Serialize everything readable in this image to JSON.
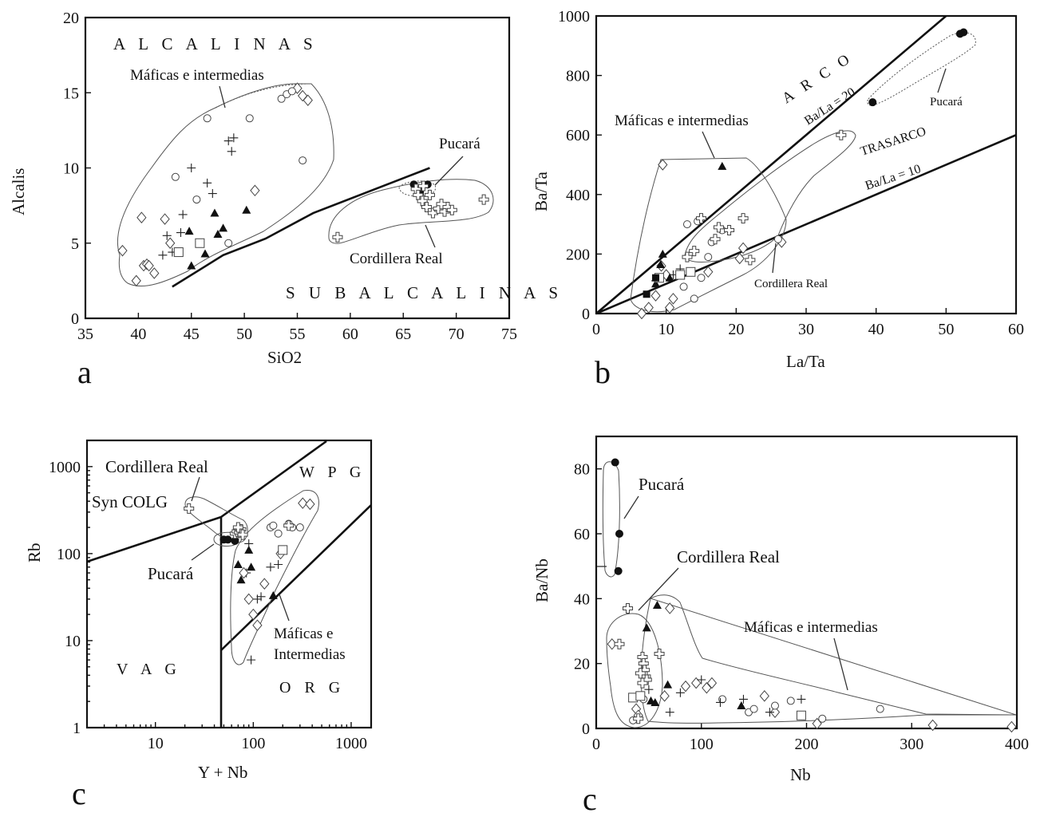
{
  "chart_data": [
    {
      "id": "a",
      "type": "scatter",
      "panel_label": "a",
      "xlabel": "SiO2",
      "ylabel": "Alcalis",
      "xlim": [
        35,
        75
      ],
      "ylim": [
        0,
        20
      ],
      "xticks": [
        "35",
        "40",
        "45",
        "50",
        "55",
        "60",
        "65",
        "70",
        "75"
      ],
      "yticks": [
        "0",
        "5",
        "10",
        "15",
        "20"
      ],
      "annotations": {
        "alcalinas": "A L C A L I N A S",
        "subalcalinas": "S U B A L C A L I N A S",
        "maficas": "Máficas e intermedias",
        "pucara": "Pucará",
        "cordillera": "Cordillera Real"
      },
      "divider_line": [
        [
          43.2,
          2.1
        ],
        [
          48,
          4.2
        ],
        [
          52,
          5.3
        ],
        [
          56.5,
          7.0
        ],
        [
          67.5,
          10.0
        ]
      ],
      "series": [
        {
          "marker": "diamond",
          "points": [
            [
              38.5,
              4.5
            ],
            [
              39.8,
              2.5
            ],
            [
              40.3,
              6.7
            ],
            [
              40.5,
              3.5
            ],
            [
              40.8,
              3.6
            ],
            [
              41,
              3.5
            ],
            [
              41.5,
              3.0
            ],
            [
              42.5,
              6.6
            ],
            [
              43,
              5.0
            ],
            [
              51,
              8.5
            ],
            [
              55.5,
              14.8
            ],
            [
              56,
              14.5
            ],
            [
              55,
              15.3
            ]
          ]
        },
        {
          "marker": "circle",
          "points": [
            [
              43.5,
              9.4
            ],
            [
              45.5,
              7.9
            ],
            [
              46.5,
              13.3
            ],
            [
              50.5,
              13.3
            ],
            [
              53.5,
              14.6
            ],
            [
              54,
              14.9
            ],
            [
              54.5,
              15.1
            ],
            [
              55.5,
              10.5
            ],
            [
              48.5,
              5.0
            ]
          ]
        },
        {
          "marker": "plus",
          "points": [
            [
              42.3,
              4.2
            ],
            [
              42.7,
              5.5
            ],
            [
              43.2,
              4.4
            ],
            [
              44,
              5.7
            ],
            [
              44.2,
              6.9
            ],
            [
              45,
              10
            ],
            [
              46.5,
              9
            ],
            [
              47,
              8.3
            ],
            [
              48.5,
              11.8
            ],
            [
              49,
              12
            ],
            [
              48.8,
              11.1
            ]
          ]
        },
        {
          "marker": "triangle",
          "points": [
            [
              44.8,
              5.8
            ],
            [
              45,
              3.5
            ],
            [
              46.3,
              4.3
            ],
            [
              47.2,
              7.0
            ],
            [
              47.5,
              5.6
            ],
            [
              48,
              6.0
            ],
            [
              50.2,
              7.2
            ]
          ]
        },
        {
          "marker": "square",
          "points": [
            [
              43.8,
              4.4
            ],
            [
              45.8,
              5.0
            ]
          ]
        },
        {
          "marker": "dot",
          "points": [
            [
              66,
              8.9
            ],
            [
              66.5,
              8.5
            ],
            [
              67.3,
              8.9
            ]
          ]
        },
        {
          "marker": "square-filled",
          "points": [
            [
              66.6,
              8.4
            ]
          ]
        },
        {
          "marker": "cross",
          "points": [
            [
              58.8,
              5.4
            ],
            [
              72.6,
              7.9
            ],
            [
              66.2,
              8.6
            ],
            [
              66.4,
              8.2
            ],
            [
              66.8,
              7.8
            ],
            [
              67.2,
              7.4
            ],
            [
              67.8,
              7.0
            ],
            [
              68.3,
              7.3
            ],
            [
              68.6,
              7.6
            ],
            [
              68.9,
              7.1
            ],
            [
              69.2,
              7.4
            ],
            [
              69.6,
              7.2
            ],
            [
              66.9,
              8.8
            ],
            [
              67.5,
              8.2
            ]
          ]
        }
      ]
    },
    {
      "id": "b",
      "type": "scatter",
      "panel_label": "b",
      "xlabel": "La/Ta",
      "ylabel": "Ba/Ta",
      "xlim": [
        0,
        60
      ],
      "ylim": [
        0,
        1000
      ],
      "xticks": [
        "0",
        "10",
        "20",
        "30",
        "40",
        "50",
        "60"
      ],
      "yticks": [
        "0",
        "200",
        "400",
        "600",
        "800",
        "1000"
      ],
      "annotations": {
        "arco": "A R C O",
        "trasarco": "TRASARCO",
        "ratio20": "Ba/La = 20",
        "ratio10": "Ba/La = 10",
        "maficas": "Máficas e intermedias",
        "pucara": "Pucará",
        "cordillera": "Cordillera Real"
      },
      "lines": [
        {
          "name": "Ba/La = 20",
          "slope": 20
        },
        {
          "name": "Ba/La = 10",
          "slope": 10
        }
      ],
      "series": [
        {
          "marker": "diamond",
          "points": [
            [
              6.5,
              0
            ],
            [
              7.5,
              20
            ],
            [
              8.5,
              60
            ],
            [
              9.5,
              500
            ],
            [
              10.5,
              20
            ],
            [
              11,
              50
            ],
            [
              16,
              140
            ],
            [
              20.5,
              185
            ],
            [
              21,
              220
            ],
            [
              9.3,
              160
            ],
            [
              10,
              130
            ],
            [
              26.5,
              240
            ]
          ]
        },
        {
          "marker": "circle",
          "points": [
            [
              12.5,
              90
            ],
            [
              13,
              300
            ],
            [
              14,
              50
            ],
            [
              15,
              120
            ],
            [
              16,
              190
            ],
            [
              14.5,
              310
            ],
            [
              16.5,
              240
            ],
            [
              18,
              280
            ],
            [
              26,
              250
            ]
          ]
        },
        {
          "marker": "plus",
          "points": [
            [
              8.5,
              110
            ],
            [
              11,
              130
            ],
            [
              12,
              150
            ]
          ]
        },
        {
          "marker": "triangle",
          "points": [
            [
              8.5,
              100
            ],
            [
              9.5,
              200
            ],
            [
              10.5,
              120
            ],
            [
              18,
              495
            ],
            [
              9.2,
              165
            ]
          ]
        },
        {
          "marker": "square",
          "points": [
            [
              9,
              120
            ],
            [
              12,
              130
            ],
            [
              13.5,
              140
            ]
          ]
        },
        {
          "marker": "square-filled",
          "points": [
            [
              7.2,
              65
            ],
            [
              8.5,
              120
            ]
          ]
        },
        {
          "marker": "dot",
          "points": [
            [
              39.5,
              710
            ],
            [
              52,
              940
            ],
            [
              52.5,
              945
            ]
          ]
        },
        {
          "marker": "cross",
          "points": [
            [
              13,
              190
            ],
            [
              14,
              210
            ],
            [
              15,
              320
            ],
            [
              17,
              250
            ],
            [
              17.5,
              290
            ],
            [
              19,
              280
            ],
            [
              21,
              320
            ],
            [
              22,
              180
            ],
            [
              35,
              600
            ]
          ]
        }
      ]
    },
    {
      "id": "c1",
      "type": "scatter",
      "panel_label": "c",
      "xlabel": "Y + Nb",
      "ylabel": "Rb",
      "xscale": "log",
      "yscale": "log",
      "xlim": [
        2,
        1600
      ],
      "ylim": [
        1,
        2000
      ],
      "xticks": [
        "10",
        "100",
        "1000"
      ],
      "yticks": [
        "1",
        "10",
        "100",
        "1000"
      ],
      "annotations": {
        "wpg": "W P G",
        "vag": "V A G",
        "org": "O R G",
        "syncolg": "Syn COLG",
        "cordillera": "Cordillera Real",
        "pucara": "Pucará",
        "maficas1": "Máficas e",
        "maficas2": "Intermedias"
      },
      "series": [
        {
          "marker": "dot",
          "points": [
            [
              50,
              145
            ],
            [
              55,
              145
            ],
            [
              65,
              140
            ]
          ]
        },
        {
          "marker": "triangle",
          "points": [
            [
              70,
              75
            ],
            [
              75,
              50
            ],
            [
              90,
              110
            ],
            [
              95,
              70
            ],
            [
              160,
              33
            ]
          ]
        },
        {
          "marker": "plus",
          "points": [
            [
              85,
              60
            ],
            [
              90,
              130
            ],
            [
              110,
              30
            ],
            [
              120,
              32
            ],
            [
              150,
              70
            ],
            [
              180,
              75
            ],
            [
              95,
              6
            ]
          ]
        },
        {
          "marker": "diamond",
          "points": [
            [
              80,
              60
            ],
            [
              100,
              20
            ],
            [
              110,
              15
            ],
            [
              130,
              45
            ],
            [
              190,
              100
            ],
            [
              320,
              380
            ],
            [
              380,
              370
            ],
            [
              90,
              30
            ]
          ]
        },
        {
          "marker": "circle",
          "points": [
            [
              150,
              200
            ],
            [
              160,
              210
            ],
            [
              230,
              220
            ],
            [
              250,
              200
            ],
            [
              300,
              200
            ],
            [
              180,
              170
            ]
          ]
        },
        {
          "marker": "square",
          "points": [
            [
              200,
              110
            ]
          ]
        },
        {
          "marker": "cross",
          "points": [
            [
              22,
              330
            ],
            [
              65,
              170
            ],
            [
              68,
              180
            ],
            [
              72,
              175
            ],
            [
              75,
              190
            ],
            [
              78,
              165
            ],
            [
              70,
              200
            ],
            [
              230,
              210
            ]
          ]
        }
      ]
    },
    {
      "id": "c2",
      "type": "scatter",
      "panel_label": "c",
      "xlabel": "Nb",
      "ylabel": "Ba/Nb",
      "xlim": [
        0,
        400
      ],
      "ylim": [
        0,
        90
      ],
      "xticks": [
        "0",
        "100",
        "200",
        "300",
        "400"
      ],
      "yticks": [
        "0",
        "20",
        "40",
        "60",
        "80"
      ],
      "annotations": {
        "pucara": "Pucará",
        "cordillera": "Cordillera Real",
        "maficas": "Máficas e intermedias"
      },
      "series": [
        {
          "marker": "dot",
          "points": [
            [
              18,
              82
            ],
            [
              22,
              60
            ],
            [
              21,
              48.5
            ]
          ]
        },
        {
          "marker": "triangle",
          "points": [
            [
              48,
              31
            ],
            [
              58,
              38
            ],
            [
              68,
              13.5
            ],
            [
              52,
              8.5
            ],
            [
              56,
              8
            ],
            [
              138,
              7
            ]
          ]
        },
        {
          "marker": "diamond",
          "points": [
            [
              15,
              26
            ],
            [
              38,
              6
            ],
            [
              40,
              4
            ],
            [
              70,
              37
            ],
            [
              65,
              10
            ],
            [
              85,
              13
            ],
            [
              95,
              14
            ],
            [
              105,
              12.5
            ],
            [
              110,
              14
            ],
            [
              160,
              10
            ],
            [
              170,
              5
            ],
            [
              210,
              1.5
            ],
            [
              320,
              1
            ],
            [
              395,
              0.5
            ]
          ]
        },
        {
          "marker": "circle",
          "points": [
            [
              35,
              2.5
            ],
            [
              45,
              9
            ],
            [
              120,
              9
            ],
            [
              145,
              5
            ],
            [
              170,
              7
            ],
            [
              185,
              8.5
            ],
            [
              215,
              3
            ],
            [
              270,
              6
            ],
            [
              150,
              6
            ]
          ]
        },
        {
          "marker": "plus",
          "points": [
            [
              50,
              12
            ],
            [
              70,
              5
            ],
            [
              80,
              11
            ],
            [
              100,
              15
            ],
            [
              118,
              8
            ],
            [
              140,
              9
            ],
            [
              165,
              5
            ],
            [
              195,
              9
            ]
          ]
        },
        {
          "marker": "square",
          "points": [
            [
              35,
              9.5
            ],
            [
              42,
              10
            ],
            [
              195,
              4
            ]
          ]
        },
        {
          "marker": "cross",
          "points": [
            [
              22,
              26
            ],
            [
              30,
              37
            ],
            [
              44,
              22
            ],
            [
              45,
              20
            ],
            [
              46,
              18
            ],
            [
              47,
              16
            ],
            [
              48,
              15
            ],
            [
              42,
              17
            ],
            [
              44,
              14
            ],
            [
              60,
              23
            ],
            [
              40,
              3
            ]
          ]
        }
      ]
    }
  ]
}
